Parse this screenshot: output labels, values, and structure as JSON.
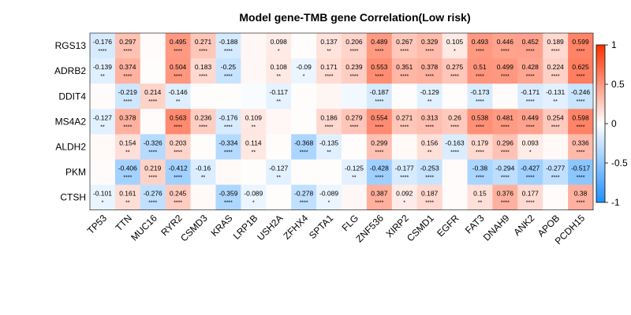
{
  "chart_data": {
    "type": "heatmap",
    "title": "Model gene-TMB gene Correlation(Low risk)",
    "rows": [
      "RGS13",
      "ADRB2",
      "DDIT4",
      "MS4A2",
      "ALDH2",
      "PKM",
      "CTSH"
    ],
    "columns": [
      "TP53",
      "TTN",
      "MUC16",
      "RYR2",
      "CSMD3",
      "KRAS",
      "LRP1B",
      "USH2A",
      "ZFHX4",
      "SPTA1",
      "FLG",
      "ZNF536",
      "XIRP2",
      "CSMD1",
      "EGFR",
      "FAT3",
      "DNAH9",
      "ANK2",
      "APOB",
      "PCDH15"
    ],
    "values": [
      [
        -0.176,
        0.297,
        0.02,
        0.495,
        0.271,
        -0.188,
        0.04,
        0.098,
        0.01,
        0.137,
        0.206,
        0.489,
        0.267,
        0.329,
        0.105,
        0.493,
        0.446,
        0.452,
        0.189,
        0.599
      ],
      [
        -0.139,
        0.374,
        0.01,
        0.504,
        0.183,
        -0.25,
        0.04,
        0.108,
        -0.09,
        0.171,
        0.239,
        0.553,
        0.351,
        0.378,
        0.275,
        0.51,
        0.499,
        0.428,
        0.224,
        0.625
      ],
      [
        0.02,
        -0.219,
        0.214,
        -0.146,
        0.01,
        0.01,
        -0.03,
        -0.117,
        0.01,
        0.05,
        -0.06,
        -0.187,
        0.01,
        -0.129,
        0.01,
        -0.173,
        0.02,
        -0.171,
        -0.131,
        -0.246
      ],
      [
        -0.127,
        0.378,
        0.02,
        0.563,
        0.236,
        -0.176,
        0.109,
        0.04,
        0.01,
        0.186,
        0.279,
        0.554,
        0.271,
        0.313,
        0.26,
        0.538,
        0.481,
        0.449,
        0.254,
        0.598
      ],
      [
        0.03,
        0.154,
        -0.326,
        0.203,
        0.01,
        -0.334,
        0.114,
        0.01,
        -0.368,
        -0.135,
        0.01,
        0.299,
        0.03,
        0.156,
        -0.163,
        0.179,
        0.296,
        0.093,
        0.03,
        0.336
      ],
      [
        0.02,
        -0.406,
        0.219,
        -0.412,
        -0.16,
        0.03,
        0.01,
        -0.127,
        0.01,
        0.01,
        -0.125,
        -0.428,
        -0.177,
        -0.253,
        0.02,
        -0.38,
        -0.294,
        -0.427,
        -0.277,
        -0.517
      ],
      [
        -0.101,
        0.161,
        -0.276,
        0.245,
        0.03,
        -0.359,
        -0.089,
        0.01,
        -0.278,
        -0.089,
        0.04,
        0.387,
        0.092,
        0.187,
        0.02,
        0.15,
        0.376,
        0.177,
        0.02,
        0.38
      ]
    ],
    "labels": [
      [
        "-0.176",
        "0.297",
        "",
        "0.495",
        "0.271",
        "-0.188",
        "",
        "0.098",
        "",
        "0.137",
        "0.206",
        "0.489",
        "0.267",
        "0.329",
        "0.105",
        "0.493",
        "0.446",
        "0.452",
        "0.189",
        "0.599"
      ],
      [
        "-0.139",
        "0.374",
        "",
        "0.504",
        "0.183",
        "-0.25",
        "",
        "0.108",
        "-0.09",
        "0.171",
        "0.239",
        "0.553",
        "0.351",
        "0.378",
        "0.275",
        "0.51",
        "0.499",
        "0.428",
        "0.224",
        "0.625"
      ],
      [
        "",
        "-0.219",
        "0.214",
        "-0.146",
        "",
        "",
        "",
        "-0.117",
        "",
        "",
        "",
        "-0.187",
        "",
        "-0.129",
        "",
        "-0.173",
        "",
        "-0.171",
        "-0.131",
        "-0.246"
      ],
      [
        "-0.127",
        "0.378",
        "",
        "0.563",
        "0.236",
        "-0.176",
        "0.109",
        "",
        "",
        "0.186",
        "0.279",
        "0.554",
        "0.271",
        "0.313",
        "0.26",
        "0.538",
        "0.481",
        "0.449",
        "0.254",
        "0.598"
      ],
      [
        "",
        "0.154",
        "-0.326",
        "0.203",
        "",
        "-0.334",
        "0.114",
        "",
        "-0.368",
        "-0.135",
        "",
        "0.299",
        "",
        "0.156",
        "-0.163",
        "0.179",
        "0.296",
        "0.093",
        "",
        "0.336"
      ],
      [
        "",
        "-0.406",
        "0.219",
        "-0.412",
        "-0.16",
        "",
        "",
        "-0.127",
        "",
        "",
        "-0.125",
        "-0.428",
        "-0.177",
        "-0.253",
        "",
        "-0.38",
        "-0.294",
        "-0.427",
        "-0.277",
        "-0.517"
      ],
      [
        "-0.101",
        "0.161",
        "-0.276",
        "0.245",
        "",
        "-0.359",
        "-0.089",
        "",
        "-0.278",
        "-0.089",
        "",
        "0.387",
        "0.092",
        "0.187",
        "",
        "0.15",
        "0.376",
        "0.177",
        "",
        "0.38"
      ]
    ],
    "significance": [
      [
        "****",
        "****",
        "",
        "****",
        "****",
        "****",
        "",
        "*",
        "",
        "**",
        "****",
        "****",
        "****",
        "****",
        "*",
        "****",
        "****",
        "****",
        "****",
        "****"
      ],
      [
        "**",
        "****",
        "",
        "****",
        "****",
        "****",
        "",
        "**",
        "*",
        "****",
        "****",
        "****",
        "****",
        "****",
        "****",
        "****",
        "****",
        "****",
        "****",
        "****"
      ],
      [
        "",
        "****",
        "****",
        "**",
        "",
        "",
        "",
        "**",
        "",
        "",
        "",
        "****",
        "",
        "**",
        "",
        "****",
        "",
        "****",
        "**",
        "****"
      ],
      [
        "**",
        "****",
        "",
        "****",
        "****",
        "****",
        "**",
        "",
        "",
        "****",
        "****",
        "****",
        "****",
        "****",
        "****",
        "****",
        "****",
        "****",
        "****",
        "****"
      ],
      [
        "",
        "**",
        "****",
        "****",
        "",
        "****",
        "**",
        "",
        "****",
        "**",
        "",
        "****",
        "",
        "**",
        "****",
        "****",
        "****",
        "*",
        "",
        "****"
      ],
      [
        "",
        "****",
        "****",
        "****",
        "**",
        "",
        "",
        "**",
        "",
        "",
        "**",
        "****",
        "****",
        "****",
        "",
        "****",
        "****",
        "****",
        "****",
        "****"
      ],
      [
        "*",
        "**",
        "****",
        "****",
        "",
        "****",
        "*",
        "",
        "****",
        "*",
        "",
        "****",
        "*",
        "****",
        "",
        "**",
        "****",
        "****",
        "",
        "****"
      ]
    ],
    "colorbar": {
      "ticks": [
        1,
        0.5,
        0,
        -0.5,
        -1
      ],
      "tick_labels": [
        "1",
        "0.5",
        "0",
        "-0.5",
        "-1"
      ],
      "range": [
        -1,
        1
      ],
      "colors": {
        "low": "#1E90FF",
        "mid": "#FFFFFF",
        "high": "#FF3000"
      }
    },
    "grid": false,
    "legend": "right"
  }
}
